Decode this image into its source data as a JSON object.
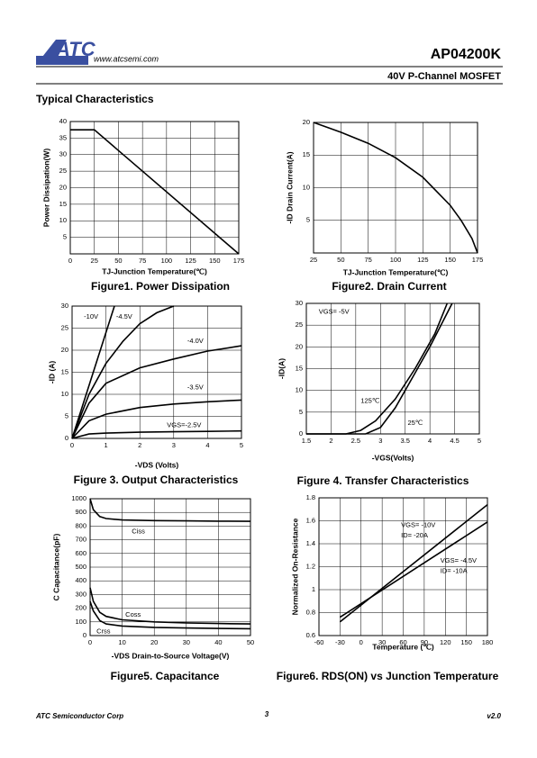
{
  "header": {
    "logo": "ATC",
    "url": "www.atcsemi.com",
    "part": "AP04200K",
    "subtitle": "40V P-Channel MOSFET"
  },
  "section_title": "Typical Characteristics",
  "chart_data": [
    {
      "type": "line",
      "title": "Figure1. Power Dissipation",
      "xlabel": "TJ-Junction Temperature(℃)",
      "ylabel": "Power Dissipation(W)",
      "xlim": [
        0,
        175
      ],
      "xticks": [
        0,
        25,
        50,
        75,
        100,
        125,
        150,
        175
      ],
      "ylim": [
        0,
        40
      ],
      "yticks": [
        5,
        10,
        15,
        20,
        25,
        30,
        35,
        40
      ],
      "grid": true,
      "series": [
        {
          "color": "#000000",
          "x": [
            0,
            25,
            175
          ],
          "values": [
            37.5,
            37.5,
            0
          ]
        }
      ]
    },
    {
      "type": "line",
      "title": "Figure2. Drain Current",
      "xlabel": "TJ-Junction Temperature(℃)",
      "ylabel": "-ID Drain Current(A)",
      "xlim": [
        25,
        175
      ],
      "xticks": [
        25,
        50,
        75,
        100,
        125,
        150,
        175
      ],
      "ylim": [
        0,
        20
      ],
      "yticks": [
        5,
        10,
        15,
        20
      ],
      "grid": true,
      "series": [
        {
          "color": "#000000",
          "x": [
            25,
            50,
            75,
            100,
            125,
            150,
            160,
            170,
            175
          ],
          "values": [
            20,
            18.5,
            16.8,
            14.6,
            11.6,
            7.3,
            5,
            2.2,
            0
          ]
        }
      ]
    },
    {
      "type": "line",
      "title": "Figure 3. Output Characteristics",
      "xlabel": "-VDS (Volts)",
      "ylabel": "-ID (A)",
      "xlim": [
        0,
        5
      ],
      "xticks": [
        0,
        1,
        2,
        3,
        4,
        5
      ],
      "ylim": [
        0,
        30
      ],
      "yticks": [
        0,
        5,
        10,
        15,
        20,
        25,
        30
      ],
      "grid": true,
      "annotations": [
        "-10V",
        "-4.5V",
        "-4.0V",
        "-3.5V",
        "VGS=-2.5V"
      ],
      "series": [
        {
          "color": "#000000",
          "x": [
            0,
            0.5,
            1,
            1.25
          ],
          "values": [
            0,
            12,
            24,
            30
          ]
        },
        {
          "color": "#000000",
          "x": [
            0,
            0.5,
            1,
            1.5,
            2,
            2.5,
            3
          ],
          "values": [
            0,
            10,
            17,
            22,
            26,
            28.5,
            30
          ]
        },
        {
          "color": "#000000",
          "x": [
            0,
            0.5,
            1,
            2,
            3,
            4,
            5
          ],
          "values": [
            0,
            8,
            12.5,
            16,
            18,
            19.8,
            21
          ]
        },
        {
          "color": "#000000",
          "x": [
            0,
            0.5,
            1,
            2,
            3,
            4,
            5
          ],
          "values": [
            0,
            4,
            5.5,
            7,
            7.8,
            8.3,
            8.7
          ]
        },
        {
          "color": "#000000",
          "x": [
            0,
            0.5,
            1,
            2,
            3,
            4,
            5
          ],
          "values": [
            0,
            1,
            1.2,
            1.4,
            1.5,
            1.6,
            1.7
          ]
        }
      ]
    },
    {
      "type": "line",
      "title": "Figure 4. Transfer Characteristics",
      "xlabel": "-VGS(Volts)",
      "ylabel": "-ID(A)",
      "xlim": [
        1.5,
        5
      ],
      "xticks": [
        1.5,
        2,
        2.5,
        3,
        3.5,
        4,
        4.5,
        5
      ],
      "ylim": [
        0,
        30
      ],
      "yticks": [
        0,
        5,
        10,
        15,
        20,
        25,
        30
      ],
      "grid": true,
      "annotations": [
        "VGS= -5V",
        "125℃",
        "25℃"
      ],
      "series": [
        {
          "color": "#000000",
          "x": [
            1.5,
            2.3,
            2.6,
            2.9,
            3.3,
            3.7,
            4.1,
            4.35
          ],
          "values": [
            0,
            0,
            0.8,
            3,
            8,
            15,
            23,
            30
          ]
        },
        {
          "color": "#000000",
          "x": [
            1.5,
            2.7,
            3.0,
            3.3,
            3.6,
            4.0,
            4.45
          ],
          "values": [
            0,
            0,
            1.5,
            6,
            12,
            20,
            30
          ]
        }
      ]
    },
    {
      "type": "line",
      "title": "Figure5. Capacitance",
      "xlabel": "-VDS Drain-to-Source Voltage(V)",
      "ylabel": "C Capacitance(pF)",
      "xlim": [
        0,
        50
      ],
      "xticks": [
        0,
        10,
        20,
        30,
        40,
        50
      ],
      "ylim": [
        0,
        1000
      ],
      "yticks": [
        0,
        100,
        200,
        300,
        400,
        500,
        600,
        700,
        800,
        900,
        1000
      ],
      "grid": true,
      "annotations": [
        "Ciss",
        "Coss",
        "Crss"
      ],
      "series": [
        {
          "color": "#000000",
          "x": [
            0,
            1,
            3,
            5,
            10,
            20,
            30,
            40,
            50
          ],
          "values": [
            1000,
            920,
            870,
            855,
            845,
            840,
            838,
            836,
            835
          ]
        },
        {
          "color": "#000000",
          "x": [
            0,
            1,
            3,
            5,
            10,
            20,
            30,
            40,
            50
          ],
          "values": [
            350,
            250,
            170,
            140,
            115,
            100,
            93,
            88,
            85
          ]
        },
        {
          "color": "#000000",
          "x": [
            0,
            1,
            3,
            5,
            10,
            20,
            30,
            40,
            50
          ],
          "values": [
            250,
            180,
            110,
            85,
            70,
            60,
            55,
            52,
            50
          ]
        }
      ]
    },
    {
      "type": "line",
      "title": "Figure6. RDS(ON) vs Junction Temperature",
      "xlabel": "Temperature (℃)",
      "ylabel": "Normalized On-Resistance",
      "xlim": [
        -60,
        180
      ],
      "xticks": [
        -60,
        -30,
        0,
        30,
        60,
        90,
        120,
        150,
        180
      ],
      "ylim": [
        0.6,
        1.8
      ],
      "yticks": [
        0.6,
        0.8,
        1,
        1.2,
        1.4,
        1.6,
        1.8
      ],
      "grid": true,
      "annotations": [
        "VGS= -10V",
        "ID= -20A",
        "VGS= -4.5V",
        "ID= -10A"
      ],
      "series": [
        {
          "color": "#000000",
          "x": [
            -30,
            180
          ],
          "values": [
            0.72,
            1.74
          ]
        },
        {
          "color": "#000000",
          "x": [
            -30,
            180
          ],
          "values": [
            0.76,
            1.59
          ]
        }
      ]
    }
  ],
  "footer": {
    "company": "ATC Semiconductor Corp",
    "page": "3",
    "version": "v2.0"
  }
}
